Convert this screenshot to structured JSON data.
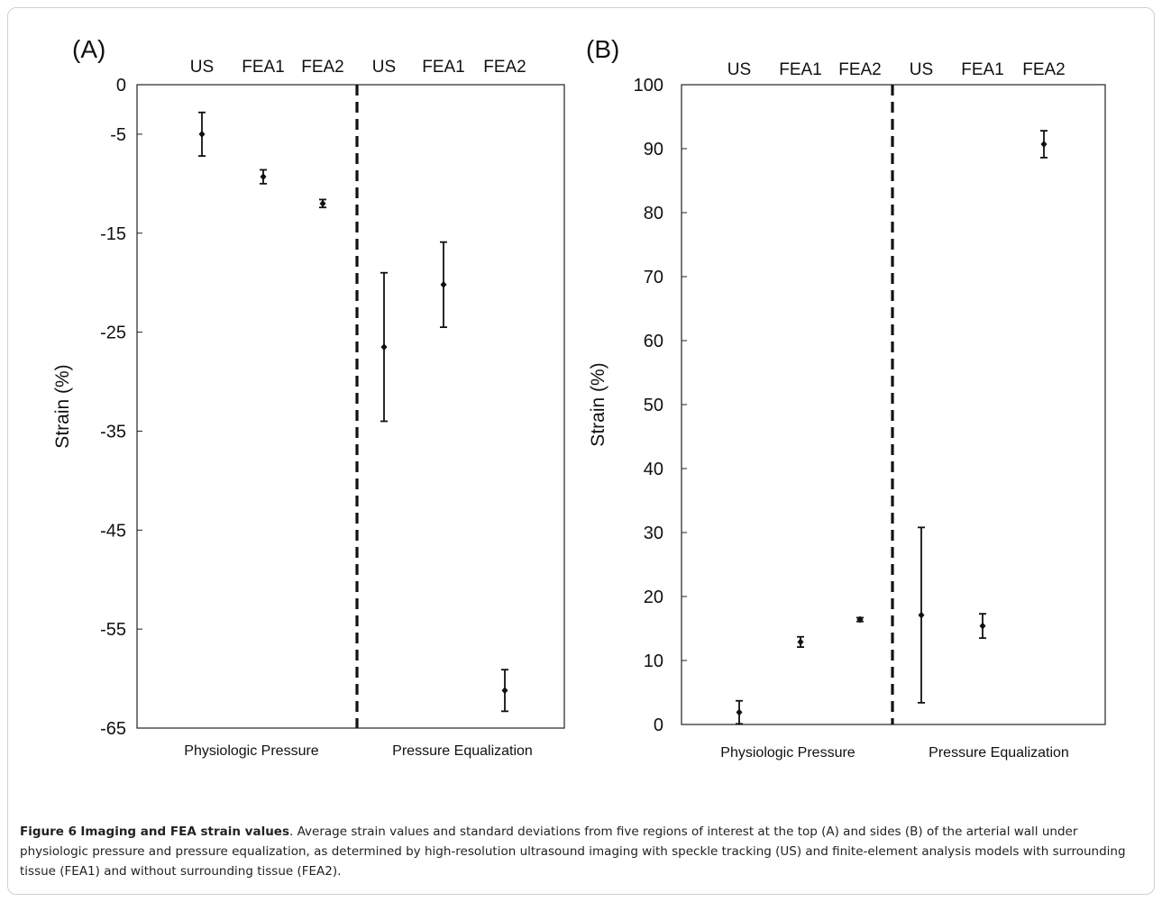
{
  "caption": {
    "figure_label": "Figure 6",
    "figure_title": "Imaging and FEA strain values",
    "text": ". Average strain values and standard deviations from five regions of interest at the top (A) and sides (B) of the arterial wall under physiologic pressure and pressure equalization, as determined by high-resolution ultrasound imaging with speckle tracking (US) and finite-element analysis models with surrounding tissue (FEA1) and without surrounding tissue (FEA2)."
  },
  "chart_data": [
    {
      "type": "scatter",
      "panel_label": "(A)",
      "title": "",
      "ylabel": "Strain (%)",
      "xlabel": "",
      "ylim": [
        -65,
        0
      ],
      "yticks": [
        0,
        -5,
        -15,
        -25,
        -35,
        -45,
        -55,
        -65
      ],
      "ytick_labels": [
        "0",
        "-5",
        "-15",
        "-25",
        "-35",
        "-45",
        "-55",
        "-65"
      ],
      "categories": [
        "US",
        "FEA1",
        "FEA2",
        "US",
        "FEA1",
        "FEA2"
      ],
      "groups": [
        "Physiologic Pressure",
        "Pressure Equalization"
      ],
      "grid": false,
      "divider": "dashed vertical line between groups",
      "series": [
        {
          "values": [
            -5.0,
            -9.3,
            -12.0,
            -26.5,
            -20.2,
            -61.2
          ],
          "error": [
            2.2,
            0.7,
            0.4,
            7.5,
            4.3,
            2.1
          ]
        }
      ]
    },
    {
      "type": "scatter",
      "panel_label": "(B)",
      "title": "",
      "ylabel": "Strain (%)",
      "xlabel": "",
      "ylim": [
        0,
        100
      ],
      "yticks": [
        0,
        10,
        20,
        30,
        40,
        50,
        60,
        70,
        80,
        90,
        100
      ],
      "ytick_labels": [
        "0",
        "10",
        "20",
        "30",
        "40",
        "50",
        "60",
        "70",
        "80",
        "90",
        "100"
      ],
      "categories": [
        "US",
        "FEA1",
        "FEA2",
        "US",
        "FEA1",
        "FEA2"
      ],
      "groups": [
        "Physiologic Pressure",
        "Pressure Equalization"
      ],
      "grid": false,
      "divider": "dashed vertical line between groups",
      "series": [
        {
          "values": [
            1.9,
            12.9,
            16.4,
            17.1,
            15.4,
            90.7
          ],
          "error": [
            1.8,
            0.8,
            0.3,
            13.7,
            1.9,
            2.1
          ]
        }
      ]
    }
  ]
}
